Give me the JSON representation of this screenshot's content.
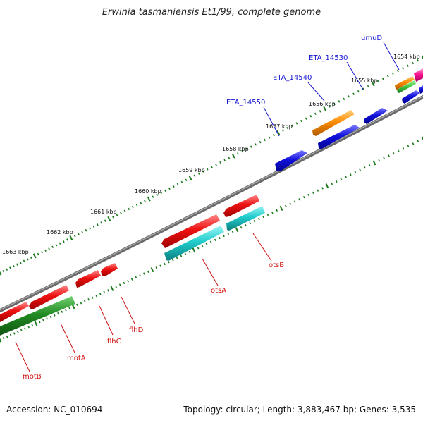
{
  "title": "Erwinia tasmaniensis Et1/99, complete genome",
  "footer": {
    "accession": "Accession: NC_010694",
    "summary": "Topology: circular; Length: 3,883,467 bp; Genes: 3,535"
  },
  "tick_labels": [
    "1654 kbp",
    "1655 kbp",
    "1656 kbp",
    "1657 kbp",
    "1658 kbp",
    "1659 kbp",
    "1660 kbp",
    "1661 kbp",
    "1662 kbp",
    "1663 kbp"
  ],
  "genes_outer": [
    {
      "name": "umuD",
      "color": "#1515d0"
    },
    {
      "name": "ETA_14530",
      "color": "#1515d0"
    },
    {
      "name": "ETA_14540",
      "color": "#1515d0"
    },
    {
      "name": "ETA_14550",
      "color": "#1515d0"
    }
  ],
  "genes_inner": [
    {
      "name": "otsB",
      "color": "#d01010"
    },
    {
      "name": "otsA",
      "color": "#d01010"
    },
    {
      "name": "flhD",
      "color": "#d01010"
    },
    {
      "name": "flhC",
      "color": "#d01010"
    },
    {
      "name": "motA",
      "color": "#d01010"
    },
    {
      "name": "motB",
      "color": "#d01010"
    }
  ],
  "colors": {
    "red": "#ee1111",
    "blue": "#1111dd",
    "orange": "#ff8c00",
    "cyan": "#22cccc",
    "green": "#228b22",
    "lightgreen": "#44cc44",
    "magenta": "#ff1493",
    "backbone": "#808080",
    "tick": "#1a7a1a"
  }
}
